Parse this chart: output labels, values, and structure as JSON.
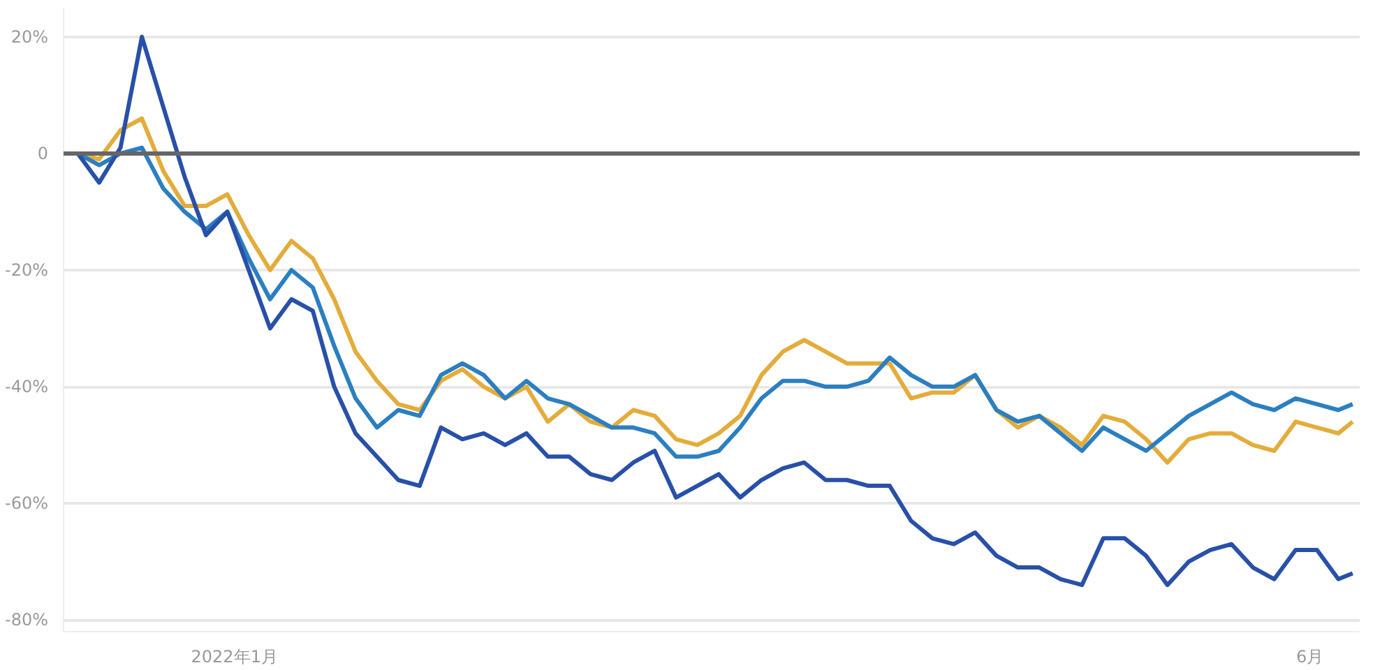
{
  "chart_data": {
    "type": "line",
    "x": [
      "2021-12-10",
      "2021-12-13",
      "2021-12-16",
      "2021-12-19",
      "2021-12-22",
      "2021-12-25",
      "2021-12-28",
      "2021-12-31",
      "2022-01-03",
      "2022-01-06",
      "2022-01-09",
      "2022-01-12",
      "2022-01-15",
      "2022-01-18",
      "2022-01-21",
      "2022-01-24",
      "2022-01-27",
      "2022-01-30",
      "2022-02-02",
      "2022-02-05",
      "2022-02-08",
      "2022-02-11",
      "2022-02-14",
      "2022-02-17",
      "2022-02-20",
      "2022-02-23",
      "2022-02-26",
      "2022-03-01",
      "2022-03-04",
      "2022-03-07",
      "2022-03-10",
      "2022-03-13",
      "2022-03-16",
      "2022-03-19",
      "2022-03-22",
      "2022-03-25",
      "2022-03-28",
      "2022-03-31",
      "2022-04-03",
      "2022-04-06",
      "2022-04-09",
      "2022-04-12",
      "2022-04-15",
      "2022-04-18",
      "2022-04-21",
      "2022-04-24",
      "2022-04-27",
      "2022-04-30",
      "2022-05-03",
      "2022-05-06",
      "2022-05-09",
      "2022-05-12",
      "2022-05-15",
      "2022-05-18",
      "2022-05-21",
      "2022-05-24",
      "2022-05-27",
      "2022-05-30",
      "2022-06-02",
      "2022-06-05",
      "2022-06-07"
    ],
    "series": [
      {
        "color": "#e3ac3b",
        "values": [
          0,
          -1,
          4,
          6,
          -3,
          -9,
          -9,
          -7,
          -14,
          -20,
          -15,
          -18,
          -25,
          -34,
          -39,
          -43,
          -44,
          -39,
          -37,
          -40,
          -42,
          -40,
          -46,
          -43,
          -46,
          -47,
          -44,
          -45,
          -49,
          -50,
          -48,
          -45,
          -38,
          -34,
          -32,
          -34,
          -36,
          -36,
          -36,
          -42,
          -41,
          -41,
          -38,
          -44,
          -47,
          -45,
          -47,
          -50,
          -45,
          -46,
          -49,
          -53,
          -49,
          -48,
          -48,
          -50,
          -51,
          -46,
          -47,
          -48,
          -46
        ]
      },
      {
        "color": "#2b7fc0",
        "values": [
          0,
          -2,
          0,
          1,
          -6,
          -10,
          -13,
          -10,
          -18,
          -25,
          -20,
          -23,
          -33,
          -42,
          -47,
          -44,
          -45,
          -38,
          -36,
          -38,
          -42,
          -39,
          -42,
          -43,
          -45,
          -47,
          -47,
          -48,
          -52,
          -52,
          -51,
          -47,
          -42,
          -39,
          -39,
          -40,
          -40,
          -39,
          -35,
          -38,
          -40,
          -40,
          -38,
          -44,
          -46,
          -45,
          -48,
          -51,
          -47,
          -49,
          -51,
          -48,
          -45,
          -43,
          -41,
          -43,
          -44,
          -42,
          -43,
          -44,
          -43
        ]
      },
      {
        "color": "#2850a8",
        "values": [
          0,
          -5,
          1,
          20,
          8,
          -4,
          -14,
          -10,
          -20,
          -30,
          -25,
          -27,
          -40,
          -48,
          -52,
          -56,
          -57,
          -47,
          -49,
          -48,
          -50,
          -48,
          -52,
          -52,
          -55,
          -56,
          -53,
          -51,
          -59,
          -57,
          -55,
          -59,
          -56,
          -54,
          -53,
          -56,
          -56,
          -57,
          -57,
          -63,
          -66,
          -67,
          -65,
          -69,
          -71,
          -71,
          -73,
          -74,
          -66,
          -66,
          -69,
          -74,
          -70,
          -68,
          -67,
          -71,
          -73,
          -68,
          -68,
          -73,
          -72
        ]
      }
    ],
    "xlim": [
      "2021-12-08",
      "2022-06-08"
    ],
    "xticks": [
      {
        "value": "2022-01-01",
        "label": "2022年1月"
      },
      {
        "value": "2022-06-01",
        "label": "6月"
      }
    ],
    "ylim": [
      -82,
      25
    ],
    "yticks": [
      {
        "value": -80,
        "label": "-80%"
      },
      {
        "value": -60,
        "label": "-60%"
      },
      {
        "value": -40,
        "label": "-40%"
      },
      {
        "value": -20,
        "label": "-20%"
      },
      0,
      {
        "value": 20,
        "label": "20%"
      }
    ],
    "ref_lines": [
      {
        "axis": "y",
        "value": 0,
        "label": null,
        "color": "#666666"
      }
    ],
    "grid": "y"
  }
}
